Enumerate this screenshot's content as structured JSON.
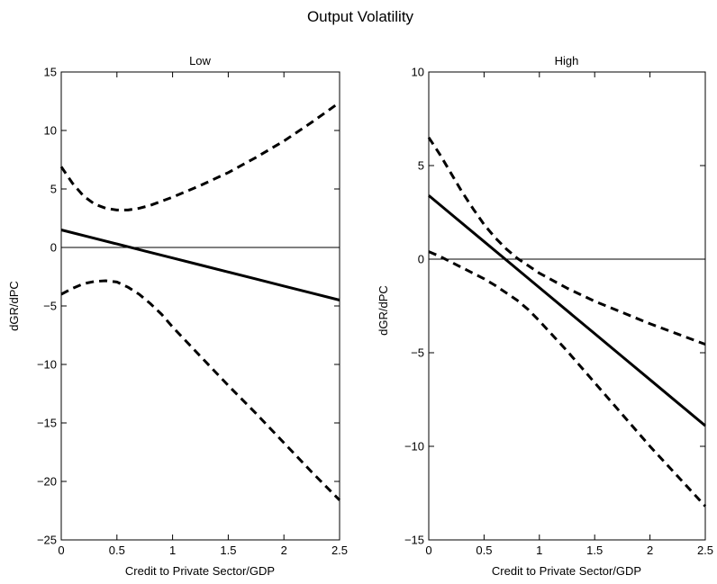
{
  "figure_title": "Output Volatility",
  "chart_data": [
    {
      "type": "line",
      "title": "Low",
      "xlabel": "Credit to Private Sector/GDP",
      "ylabel": "dGR/dPC",
      "xlim": [
        0,
        2.5
      ],
      "ylim": [
        -25,
        15
      ],
      "xticks": [
        0,
        0.5,
        1,
        1.5,
        2,
        2.5
      ],
      "xtick_labels": [
        "0",
        "0.5",
        "1",
        "1.5",
        "2",
        "2.5"
      ],
      "yticks": [
        -25,
        -20,
        -15,
        -10,
        -5,
        0,
        5,
        10,
        15
      ],
      "ytick_labels": [
        "−25",
        "−20",
        "−15",
        "−10",
        "−5",
        "0",
        "5",
        "10",
        "15"
      ],
      "grid": false,
      "reference_line_y": 0,
      "series": [
        {
          "style": "solid",
          "x": [
            0,
            0.25,
            0.5,
            0.75,
            1,
            1.25,
            1.5,
            1.75,
            2,
            2.25,
            2.5
          ],
          "y": [
            1.5,
            0.9,
            0.3,
            -0.3,
            -0.9,
            -1.5,
            -2.1,
            -2.7,
            -3.3,
            -3.9,
            -4.5
          ]
        },
        {
          "style": "dashed",
          "x": [
            0,
            0.1,
            0.2,
            0.3,
            0.4,
            0.5,
            0.6,
            0.7,
            0.8,
            0.9,
            1.0,
            1.25,
            1.5,
            1.75,
            2.0,
            2.25,
            2.5
          ],
          "y": [
            6.9,
            5.5,
            4.4,
            3.7,
            3.35,
            3.2,
            3.2,
            3.35,
            3.6,
            3.95,
            4.3,
            5.3,
            6.4,
            7.7,
            9.1,
            10.7,
            12.4
          ]
        },
        {
          "style": "dashed",
          "x": [
            0,
            0.1,
            0.2,
            0.3,
            0.4,
            0.5,
            0.6,
            0.7,
            0.8,
            0.9,
            1.0,
            1.25,
            1.5,
            1.75,
            2.0,
            2.25,
            2.5
          ],
          "y": [
            -4.0,
            -3.5,
            -3.1,
            -2.9,
            -2.85,
            -2.95,
            -3.4,
            -4.0,
            -4.8,
            -5.7,
            -6.8,
            -9.3,
            -11.8,
            -14.2,
            -16.7,
            -19.2,
            -21.6
          ]
        }
      ]
    },
    {
      "type": "line",
      "title": "High",
      "xlabel": "Credit to Private Sector/GDP",
      "ylabel": "dGR/dPC",
      "xlim": [
        0,
        2.5
      ],
      "ylim": [
        -15,
        10
      ],
      "xticks": [
        0,
        0.5,
        1,
        1.5,
        2,
        2.5
      ],
      "xtick_labels": [
        "0",
        "0.5",
        "1",
        "1.5",
        "2",
        "2.5"
      ],
      "yticks": [
        -15,
        -10,
        -5,
        0,
        5,
        10
      ],
      "ytick_labels": [
        "−15",
        "−10",
        "−5",
        "0",
        "5",
        "10"
      ],
      "grid": false,
      "reference_line_y": 0,
      "series": [
        {
          "style": "solid",
          "x": [
            0,
            0.25,
            0.5,
            0.75,
            1,
            1.25,
            1.5,
            1.75,
            2,
            2.25,
            2.5
          ],
          "y": [
            3.4,
            2.17,
            0.94,
            -0.29,
            -1.52,
            -2.75,
            -3.98,
            -5.21,
            -6.44,
            -7.67,
            -8.9
          ]
        },
        {
          "style": "dashed",
          "x": [
            0,
            0.1,
            0.2,
            0.3,
            0.4,
            0.5,
            0.6,
            0.7,
            0.8,
            0.9,
            1.0,
            1.25,
            1.5,
            1.75,
            2.0,
            2.25,
            2.5
          ],
          "y": [
            6.5,
            5.6,
            4.6,
            3.6,
            2.7,
            1.85,
            1.15,
            0.55,
            0.05,
            -0.35,
            -0.75,
            -1.55,
            -2.25,
            -2.85,
            -3.45,
            -4.0,
            -4.55
          ]
        },
        {
          "style": "dashed",
          "x": [
            0,
            0.1,
            0.2,
            0.3,
            0.4,
            0.5,
            0.6,
            0.7,
            0.8,
            0.9,
            1.0,
            1.25,
            1.5,
            1.75,
            2.0,
            2.25,
            2.5
          ],
          "y": [
            0.4,
            0.15,
            -0.15,
            -0.45,
            -0.75,
            -1.05,
            -1.4,
            -1.8,
            -2.2,
            -2.7,
            -3.3,
            -4.9,
            -6.6,
            -8.3,
            -10.0,
            -11.6,
            -13.2
          ]
        }
      ]
    }
  ]
}
